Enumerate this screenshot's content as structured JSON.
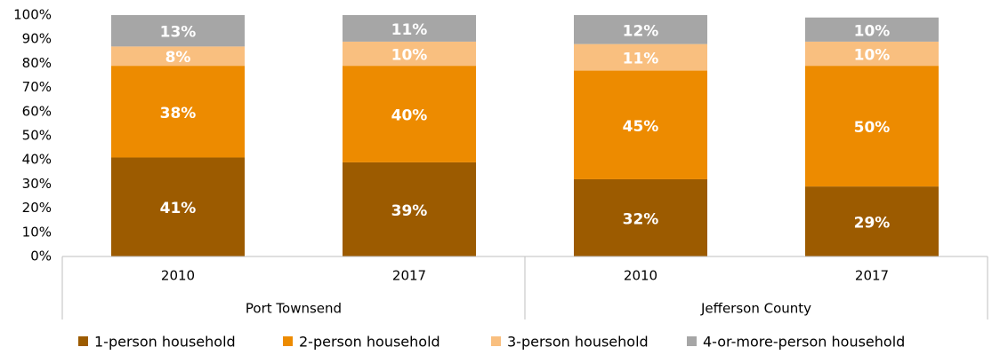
{
  "chart_data": {
    "type": "stacked_bar",
    "categories": [
      "2010",
      "2017",
      "2010",
      "2017"
    ],
    "groups": [
      "Port Townsend",
      "Jefferson County"
    ],
    "series": [
      {
        "name": "1-person household",
        "color": "#9c5b00",
        "values": [
          41,
          39,
          32,
          29
        ],
        "value_labels": [
          "41%",
          "39%",
          "32%",
          "29%"
        ]
      },
      {
        "name": "2-person household",
        "color": "#ed8b00",
        "values": [
          38,
          40,
          45,
          50
        ],
        "value_labels": [
          "38%",
          "40%",
          "45%",
          "50%"
        ]
      },
      {
        "name": "3-person household",
        "color": "#f9bf7f",
        "values": [
          8,
          10,
          11,
          10
        ],
        "value_labels": [
          "8%",
          "10%",
          "11%",
          "10%"
        ]
      },
      {
        "name": "4-or-more-person household",
        "color": "#a6a6a6",
        "values": [
          13,
          11,
          12,
          10
        ],
        "value_labels": [
          "13%",
          "11%",
          "12%",
          "10%"
        ]
      }
    ],
    "ylim": [
      0,
      100
    ],
    "yticks": [
      {
        "value": 0,
        "label": "0%"
      },
      {
        "value": 10,
        "label": "10%"
      },
      {
        "value": 20,
        "label": "20%"
      },
      {
        "value": 30,
        "label": "30%"
      },
      {
        "value": 40,
        "label": "40%"
      },
      {
        "value": 50,
        "label": "50%"
      },
      {
        "value": 60,
        "label": "60%"
      },
      {
        "value": 70,
        "label": "70%"
      },
      {
        "value": 80,
        "label": "80%"
      },
      {
        "value": 90,
        "label": "90%"
      },
      {
        "value": 100,
        "label": "100%"
      }
    ],
    "legend": "bottom"
  }
}
